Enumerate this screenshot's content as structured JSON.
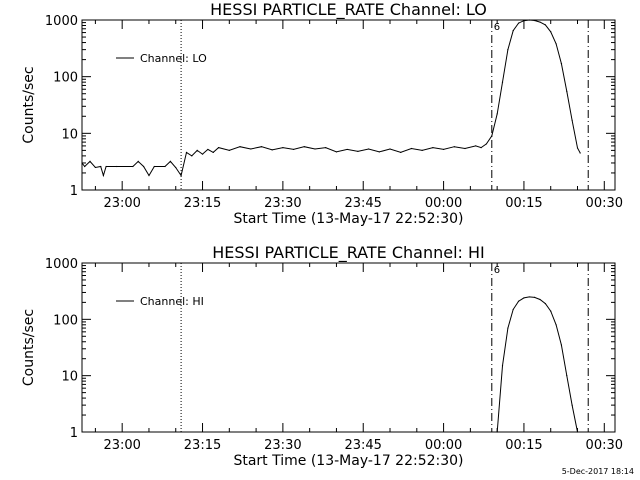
{
  "chart_data": [
    {
      "type": "line",
      "title": "HESSI PARTICLE_RATE Channel: LO",
      "xlabel": "Start Time (13-May-17 22:52:30)",
      "ylabel": "Counts/sec",
      "y_scale": "log",
      "ylim": [
        1,
        1000
      ],
      "y_ticks": [
        "1",
        "10",
        "100",
        "1000"
      ],
      "xlim": [
        "22:52:30",
        "00:32:00"
      ],
      "x_ticks": [
        "23:00",
        "23:15",
        "23:30",
        "23:45",
        "00:00",
        "00:15",
        "00:30"
      ],
      "legend_position": "upper-left",
      "series": [
        {
          "name": "Channel: LO",
          "points": [
            [
              "22:52:30",
              3.0
            ],
            [
              "22:53:00",
              2.6
            ],
            [
              "22:54:00",
              3.2
            ],
            [
              "22:55:00",
              2.5
            ],
            [
              "22:56:00",
              2.6
            ],
            [
              "22:56:30",
              1.8
            ],
            [
              "22:57:00",
              2.6
            ],
            [
              "22:59:00",
              2.6
            ],
            [
              "23:02:00",
              2.6
            ],
            [
              "23:03:00",
              3.2
            ],
            [
              "23:04:00",
              2.6
            ],
            [
              "23:05:00",
              1.8
            ],
            [
              "23:06:00",
              2.6
            ],
            [
              "23:08:00",
              2.6
            ],
            [
              "23:09:00",
              3.2
            ],
            [
              "23:10:00",
              2.5
            ],
            [
              "23:11:00",
              1.8
            ],
            [
              "23:12:00",
              4.6
            ],
            [
              "23:13:00",
              4.0
            ],
            [
              "23:14:00",
              5.0
            ],
            [
              "23:15:00",
              4.3
            ],
            [
              "23:16:00",
              5.2
            ],
            [
              "23:17:00",
              4.6
            ],
            [
              "23:18:00",
              5.6
            ],
            [
              "23:20:00",
              5.0
            ],
            [
              "23:22:00",
              5.8
            ],
            [
              "23:24:00",
              5.3
            ],
            [
              "23:26:00",
              5.8
            ],
            [
              "23:28:00",
              5.1
            ],
            [
              "23:30:00",
              5.6
            ],
            [
              "23:32:00",
              5.2
            ],
            [
              "23:34:00",
              5.8
            ],
            [
              "23:36:00",
              5.3
            ],
            [
              "23:38:00",
              5.6
            ],
            [
              "23:40:00",
              4.7
            ],
            [
              "23:42:00",
              5.2
            ],
            [
              "23:44:00",
              4.8
            ],
            [
              "23:46:00",
              5.3
            ],
            [
              "23:48:00",
              4.7
            ],
            [
              "23:50:00",
              5.3
            ],
            [
              "23:52:00",
              4.6
            ],
            [
              "23:54:00",
              5.4
            ],
            [
              "23:56:00",
              5.0
            ],
            [
              "23:58:00",
              5.6
            ],
            [
              "00:00:00",
              5.2
            ],
            [
              "00:02:00",
              5.8
            ],
            [
              "00:04:00",
              5.4
            ],
            [
              "00:06:00",
              6.0
            ],
            [
              "00:07:00",
              5.6
            ],
            [
              "00:08:00",
              6.5
            ],
            [
              "00:09:00",
              9.0
            ],
            [
              "00:10:00",
              22
            ],
            [
              "00:11:00",
              80
            ],
            [
              "00:12:00",
              300
            ],
            [
              "00:13:00",
              650
            ],
            [
              "00:14:00",
              880
            ],
            [
              "00:15:00",
              970
            ],
            [
              "00:16:00",
              1000
            ],
            [
              "00:17:00",
              980
            ],
            [
              "00:18:00",
              920
            ],
            [
              "00:19:00",
              820
            ],
            [
              "00:20:00",
              620
            ],
            [
              "00:21:00",
              380
            ],
            [
              "00:22:00",
              170
            ],
            [
              "00:23:00",
              55
            ],
            [
              "00:24:00",
              17
            ],
            [
              "00:25:00",
              5.5
            ],
            [
              "00:25:30",
              4.5
            ]
          ]
        }
      ],
      "vertical_markers": [
        {
          "x": "23:11:00",
          "style": "dotted"
        },
        {
          "x": "00:09:00",
          "style": "dash-dot",
          "label": "6"
        },
        {
          "x": "00:27:00",
          "style": "dash-dot"
        }
      ]
    },
    {
      "type": "line",
      "title": "HESSI PARTICLE_RATE Channel: HI",
      "xlabel": "Start Time (13-May-17 22:52:30)",
      "ylabel": "Counts/sec",
      "y_scale": "log",
      "ylim": [
        1,
        1000
      ],
      "y_ticks": [
        "1",
        "10",
        "100",
        "1000"
      ],
      "xlim": [
        "22:52:30",
        "00:32:00"
      ],
      "x_ticks": [
        "23:00",
        "23:15",
        "23:30",
        "23:45",
        "00:00",
        "00:15",
        "00:30"
      ],
      "legend_position": "upper-left",
      "series": [
        {
          "name": "Channel: HI",
          "points": [
            [
              "00:10:00",
              1.0
            ],
            [
              "00:11:00",
              15
            ],
            [
              "00:12:00",
              70
            ],
            [
              "00:13:00",
              150
            ],
            [
              "00:14:00",
              210
            ],
            [
              "00:15:00",
              240
            ],
            [
              "00:16:00",
              250
            ],
            [
              "00:17:00",
              245
            ],
            [
              "00:18:00",
              225
            ],
            [
              "00:19:00",
              190
            ],
            [
              "00:20:00",
              140
            ],
            [
              "00:21:00",
              80
            ],
            [
              "00:22:00",
              35
            ],
            [
              "00:23:00",
              10
            ],
            [
              "00:24:00",
              3.0
            ],
            [
              "00:25:00",
              1.0
            ]
          ]
        }
      ],
      "vertical_markers": [
        {
          "x": "23:11:00",
          "style": "dotted"
        },
        {
          "x": "00:09:00",
          "style": "dash-dot",
          "label": "6"
        },
        {
          "x": "00:27:00",
          "style": "dash-dot"
        }
      ]
    }
  ],
  "footer": {
    "stamp": "5-Dec-2017 18:14"
  }
}
